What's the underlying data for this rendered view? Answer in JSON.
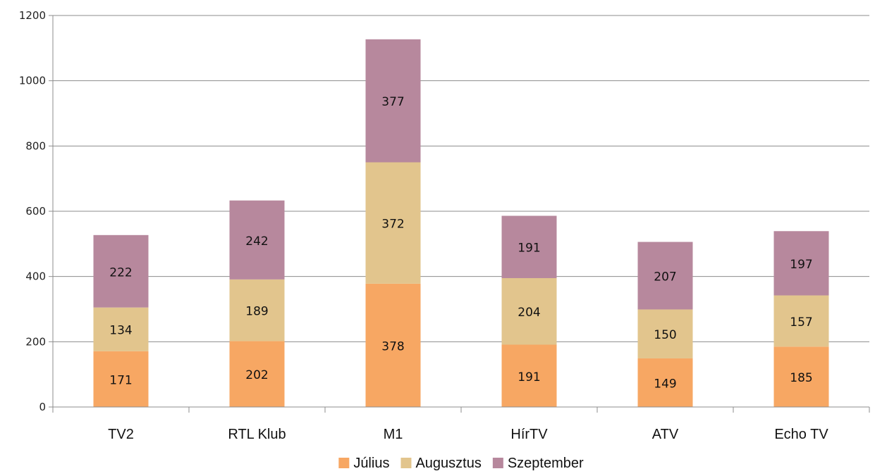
{
  "chart_data": {
    "type": "bar",
    "stacked": true,
    "title": "",
    "xlabel": "",
    "ylabel": "",
    "categories": [
      "TV2",
      "RTL Klub",
      "M1",
      "HírTV",
      "ATV",
      "Echo TV"
    ],
    "series": [
      {
        "name": "Július",
        "color": "#f7a763",
        "values": [
          171,
          202,
          378,
          191,
          149,
          185
        ]
      },
      {
        "name": "Augusztus",
        "color": "#e2c58d",
        "values": [
          134,
          189,
          372,
          204,
          150,
          157
        ]
      },
      {
        "name": "Szeptember",
        "color": "#b7889d",
        "values": [
          222,
          242,
          377,
          191,
          207,
          197
        ]
      }
    ],
    "ylim": [
      0,
      1200
    ],
    "yticks": [
      0,
      200,
      400,
      600,
      800,
      1000,
      1200
    ],
    "grid": true,
    "data_labels": true,
    "legend_position": "bottom"
  }
}
